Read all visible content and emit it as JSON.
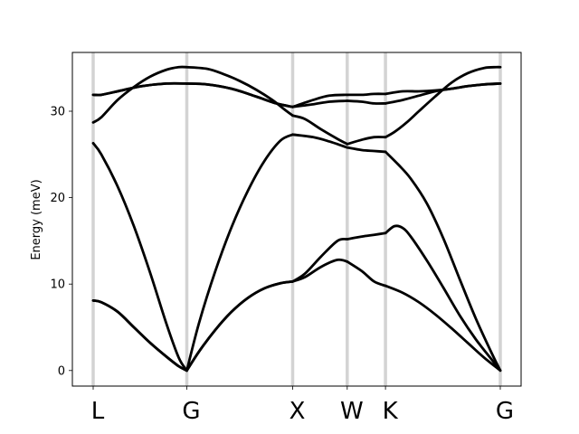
{
  "chart_data": {
    "type": "line",
    "title": "",
    "xlabel": "",
    "ylabel": "Energy (meV)",
    "xlim": [
      0,
      5.0
    ],
    "ylim": [
      -1.8,
      36.8
    ],
    "yticks": [
      0,
      10,
      20,
      30
    ],
    "grid": false,
    "high_symmetry_points": [
      {
        "label": "L",
        "x": 0.0
      },
      {
        "label": "G",
        "x": 1.15
      },
      {
        "label": "X",
        "x": 2.45
      },
      {
        "label": "W",
        "x": 3.12
      },
      {
        "label": "K",
        "x": 3.59
      },
      {
        "label": "G",
        "x": 5.0
      }
    ],
    "series": [
      {
        "segments": [
          {
            "x": [
              0,
              0.1,
              0.3,
              0.5,
              0.7,
              0.9,
              1.05,
              1.15
            ],
            "y": [
              8.1,
              7.9,
              6.8,
              5.0,
              3.2,
              1.6,
              0.5,
              0.0
            ]
          },
          {
            "x": [
              1.15,
              1.3,
              1.5,
              1.7,
              1.9,
              2.1,
              2.3,
              2.45
            ],
            "y": [
              0.0,
              2.2,
              4.7,
              6.8,
              8.4,
              9.5,
              10.1,
              10.3
            ]
          },
          {
            "x": [
              2.45,
              2.6,
              2.8,
              3.0,
              3.12
            ],
            "y": [
              10.3,
              10.8,
              12.0,
              12.8,
              12.6
            ]
          },
          {
            "x": [
              3.12,
              3.3,
              3.45,
              3.59
            ],
            "y": [
              12.6,
              11.5,
              10.3,
              9.8
            ]
          },
          {
            "x": [
              3.59,
              3.8,
              4.0,
              4.2,
              4.4,
              4.6,
              4.8,
              5.0
            ],
            "y": [
              9.8,
              9.0,
              7.9,
              6.5,
              4.9,
              3.2,
              1.5,
              0.0
            ]
          }
        ]
      },
      {
        "segments": [
          {
            "x": [
              0,
              0.1,
              0.3,
              0.5,
              0.7,
              0.9,
              1.05,
              1.15
            ],
            "y": [
              8.1,
              7.9,
              6.8,
              5.0,
              3.2,
              1.6,
              0.5,
              0.0
            ]
          },
          {
            "x": [
              1.15,
              1.3,
              1.5,
              1.7,
              1.9,
              2.1,
              2.3,
              2.45
            ],
            "y": [
              0.0,
              2.2,
              4.7,
              6.8,
              8.4,
              9.5,
              10.1,
              10.3
            ]
          },
          {
            "x": [
              2.45,
              2.6,
              2.8,
              3.0,
              3.12
            ],
            "y": [
              10.3,
              11.2,
              13.2,
              15.0,
              15.2
            ]
          },
          {
            "x": [
              3.12,
              3.3,
              3.45,
              3.59
            ],
            "y": [
              15.2,
              15.5,
              15.7,
              15.9
            ]
          },
          {
            "x": [
              3.59,
              3.7,
              3.8,
              3.9,
              4.1,
              4.3,
              4.5,
              4.7,
              4.9,
              5.0
            ],
            "y": [
              15.9,
              16.7,
              16.5,
              15.5,
              12.7,
              9.6,
              6.4,
              3.6,
              1.2,
              0.0
            ]
          }
        ]
      },
      {
        "segments": [
          {
            "x": [
              0,
              0.1,
              0.3,
              0.5,
              0.7,
              0.9,
              1.05,
              1.15
            ],
            "y": [
              26.3,
              25.0,
              21.3,
              16.7,
              11.3,
              5.4,
              1.5,
              0.0
            ]
          },
          {
            "x": [
              1.15,
              1.3,
              1.5,
              1.7,
              1.9,
              2.1,
              2.3,
              2.45
            ],
            "y": [
              0.0,
              5.5,
              11.5,
              16.6,
              20.8,
              24.2,
              26.6,
              27.3
            ]
          },
          {
            "x": [
              2.45,
              2.7,
              2.9,
              3.12
            ],
            "y": [
              27.3,
              27.0,
              26.5,
              25.8
            ]
          },
          {
            "x": [
              3.12,
              3.3,
              3.45,
              3.59
            ],
            "y": [
              25.8,
              25.5,
              25.4,
              25.3
            ]
          },
          {
            "x": [
              3.59,
              3.75,
              3.9,
              4.1,
              4.3,
              4.5,
              4.7,
              4.9,
              5.0
            ],
            "y": [
              25.3,
              23.8,
              22.2,
              19.3,
              15.3,
              10.6,
              6.0,
              1.9,
              0.0
            ]
          }
        ]
      },
      {
        "segments": [
          {
            "x": [
              0,
              0.1,
              0.3,
              0.5,
              0.7,
              0.9,
              1.05,
              1.15
            ],
            "y": [
              28.7,
              29.3,
              31.3,
              32.8,
              34.0,
              34.8,
              35.1,
              35.1
            ]
          },
          {
            "x": [
              1.15,
              1.4,
              1.6,
              1.8,
              2.0,
              2.2,
              2.35,
              2.45
            ],
            "y": [
              35.1,
              34.9,
              34.3,
              33.5,
              32.5,
              31.3,
              30.2,
              29.5
            ]
          },
          {
            "x": [
              2.45,
              2.6,
              2.8,
              3.0,
              3.12
            ],
            "y": [
              29.5,
              29.1,
              27.9,
              26.8,
              26.2
            ]
          },
          {
            "x": [
              3.12,
              3.3,
              3.45,
              3.59
            ],
            "y": [
              26.2,
              26.7,
              27.0,
              27.0
            ]
          },
          {
            "x": [
              3.59,
              3.7,
              3.85,
              4.0,
              4.2,
              4.4,
              4.6,
              4.8,
              4.95,
              5.0
            ],
            "y": [
              27.0,
              27.6,
              28.7,
              30.0,
              31.7,
              33.3,
              34.4,
              35.0,
              35.1,
              35.1
            ]
          }
        ]
      },
      {
        "segments": [
          {
            "x": [
              0,
              0.1,
              0.3,
              0.6,
              0.9,
              1.15
            ],
            "y": [
              31.9,
              31.9,
              32.3,
              32.9,
              33.2,
              33.2
            ]
          },
          {
            "x": [
              1.15,
              1.4,
              1.7,
              2.0,
              2.25,
              2.45
            ],
            "y": [
              33.2,
              33.1,
              32.6,
              31.7,
              30.9,
              30.5
            ]
          },
          {
            "x": [
              2.45,
              2.7,
              2.9,
              3.12
            ],
            "y": [
              30.5,
              30.8,
              31.1,
              31.2
            ]
          },
          {
            "x": [
              3.12,
              3.3,
              3.45,
              3.59
            ],
            "y": [
              31.2,
              31.1,
              30.9,
              30.9
            ]
          },
          {
            "x": [
              3.59,
              3.8,
              4.0,
              4.2,
              4.4,
              4.6,
              4.8,
              5.0
            ],
            "y": [
              30.9,
              31.3,
              31.8,
              32.3,
              32.6,
              32.9,
              33.1,
              33.2
            ]
          }
        ]
      },
      {
        "segments": [
          {
            "x": [
              0,
              0.1,
              0.3,
              0.6,
              0.9,
              1.15
            ],
            "y": [
              31.9,
              31.9,
              32.3,
              32.9,
              33.2,
              33.2
            ]
          },
          {
            "x": [
              1.15,
              1.4,
              1.7,
              2.0,
              2.25,
              2.45
            ],
            "y": [
              33.2,
              33.1,
              32.6,
              31.7,
              30.9,
              30.5
            ]
          },
          {
            "x": [
              2.45,
              2.7,
              2.9,
              3.12
            ],
            "y": [
              30.5,
              31.3,
              31.8,
              31.9
            ]
          },
          {
            "x": [
              3.12,
              3.3,
              3.45,
              3.59
            ],
            "y": [
              31.9,
              31.9,
              32.0,
              32.0
            ]
          },
          {
            "x": [
              3.59,
              3.8,
              4.0,
              4.2,
              4.4,
              4.6,
              4.8,
              5.0
            ],
            "y": [
              32.0,
              32.3,
              32.3,
              32.4,
              32.6,
              32.9,
              33.1,
              33.2
            ]
          }
        ]
      }
    ]
  }
}
